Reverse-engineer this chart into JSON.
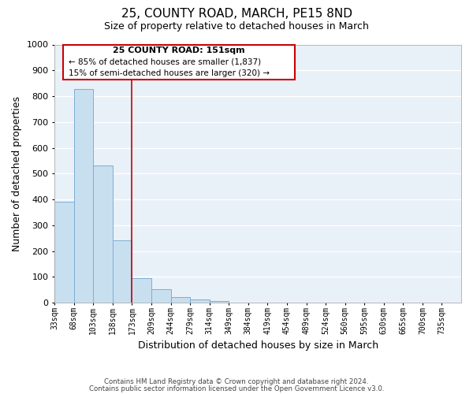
{
  "title": "25, COUNTY ROAD, MARCH, PE15 8ND",
  "subtitle": "Size of property relative to detached houses in March",
  "xlabel": "Distribution of detached houses by size in March",
  "ylabel": "Number of detached properties",
  "bar_values": [
    390,
    828,
    531,
    242,
    96,
    52,
    22,
    13,
    8,
    0,
    0,
    0,
    0,
    0,
    0,
    0,
    0,
    0,
    0,
    0
  ],
  "bar_labels": [
    "33sqm",
    "68sqm",
    "103sqm",
    "138sqm",
    "173sqm",
    "209sqm",
    "244sqm",
    "279sqm",
    "314sqm",
    "349sqm",
    "384sqm",
    "419sqm",
    "454sqm",
    "489sqm",
    "524sqm",
    "560sqm",
    "595sqm",
    "630sqm",
    "665sqm",
    "700sqm",
    "735sqm"
  ],
  "bar_color": "#c8dff0",
  "bar_edge_color": "#7bafd4",
  "ylim": [
    0,
    1000
  ],
  "yticks": [
    0,
    100,
    200,
    300,
    400,
    500,
    600,
    700,
    800,
    900,
    1000
  ],
  "vline_x": 4.0,
  "vline_color": "#cc0000",
  "box_text_line1": "25 COUNTY ROAD: 151sqm",
  "box_text_line2": "← 85% of detached houses are smaller (1,837)",
  "box_text_line3": "15% of semi-detached houses are larger (320) →",
  "box_color": "#cc0000",
  "footer_line1": "Contains HM Land Registry data © Crown copyright and database right 2024.",
  "footer_line2": "Contains public sector information licensed under the Open Government Licence v3.0.",
  "background_color": "#e8f0f8",
  "grid_color": "#ffffff",
  "fig_bg_color": "#ffffff"
}
